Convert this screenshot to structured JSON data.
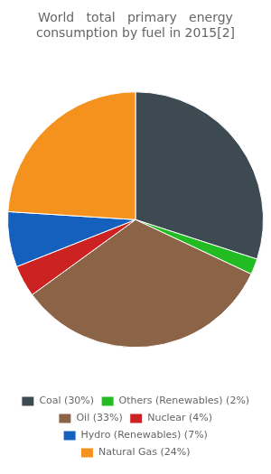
{
  "chart_data": {
    "type": "pie",
    "title": [
      "World   total   primary   energy",
      "consumption by fuel in 2015[2]"
    ],
    "categories": [
      "Coal (30%)",
      "Others (Renewables) (2%)",
      "Oil (33%)",
      "Nuclear (4%)",
      "Hydro (Renewables) (7%)",
      "Natural Gas (24%)"
    ],
    "values": [
      30,
      2,
      33,
      4,
      7,
      24
    ],
    "colors": [
      "#3d4a52",
      "#22bb22",
      "#8b6347",
      "#cc2222",
      "#1560bd",
      "#f5921e"
    ],
    "legend": "bottom"
  }
}
